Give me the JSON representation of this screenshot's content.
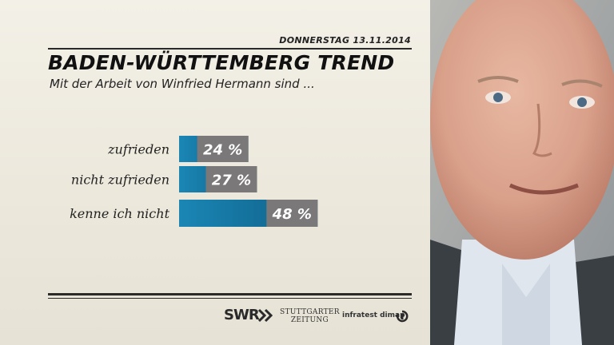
{
  "header": {
    "date": "DONNERSTAG 13.11.2014",
    "title": "BADEN-WÜRTTEMBERG TREND",
    "subtitle": "Mit der Arbeit von Winfried Hermann sind ..."
  },
  "chart_data": {
    "type": "bar",
    "orientation": "horizontal",
    "categories": [
      "zufrieden",
      "nicht zufrieden",
      "kenne ich nicht"
    ],
    "values": [
      24,
      27,
      48
    ],
    "value_labels": [
      "24 %",
      "27 %",
      "48 %"
    ],
    "unit": "%",
    "xlim": [
      0,
      100
    ],
    "grid": false,
    "colors": {
      "bar": "#1b86b5",
      "bar_end": "#0e5f86",
      "label_box": "#7a7878",
      "label_text": "#ffffff"
    }
  },
  "footer": {
    "logos": {
      "swr": "SWR",
      "stuttgarter_line1": "STUTTGARTER",
      "stuttgarter_line2": "ZEITUNG",
      "infratest": "infratest dimap"
    }
  },
  "photo": {
    "icon": "portrait-photo"
  }
}
